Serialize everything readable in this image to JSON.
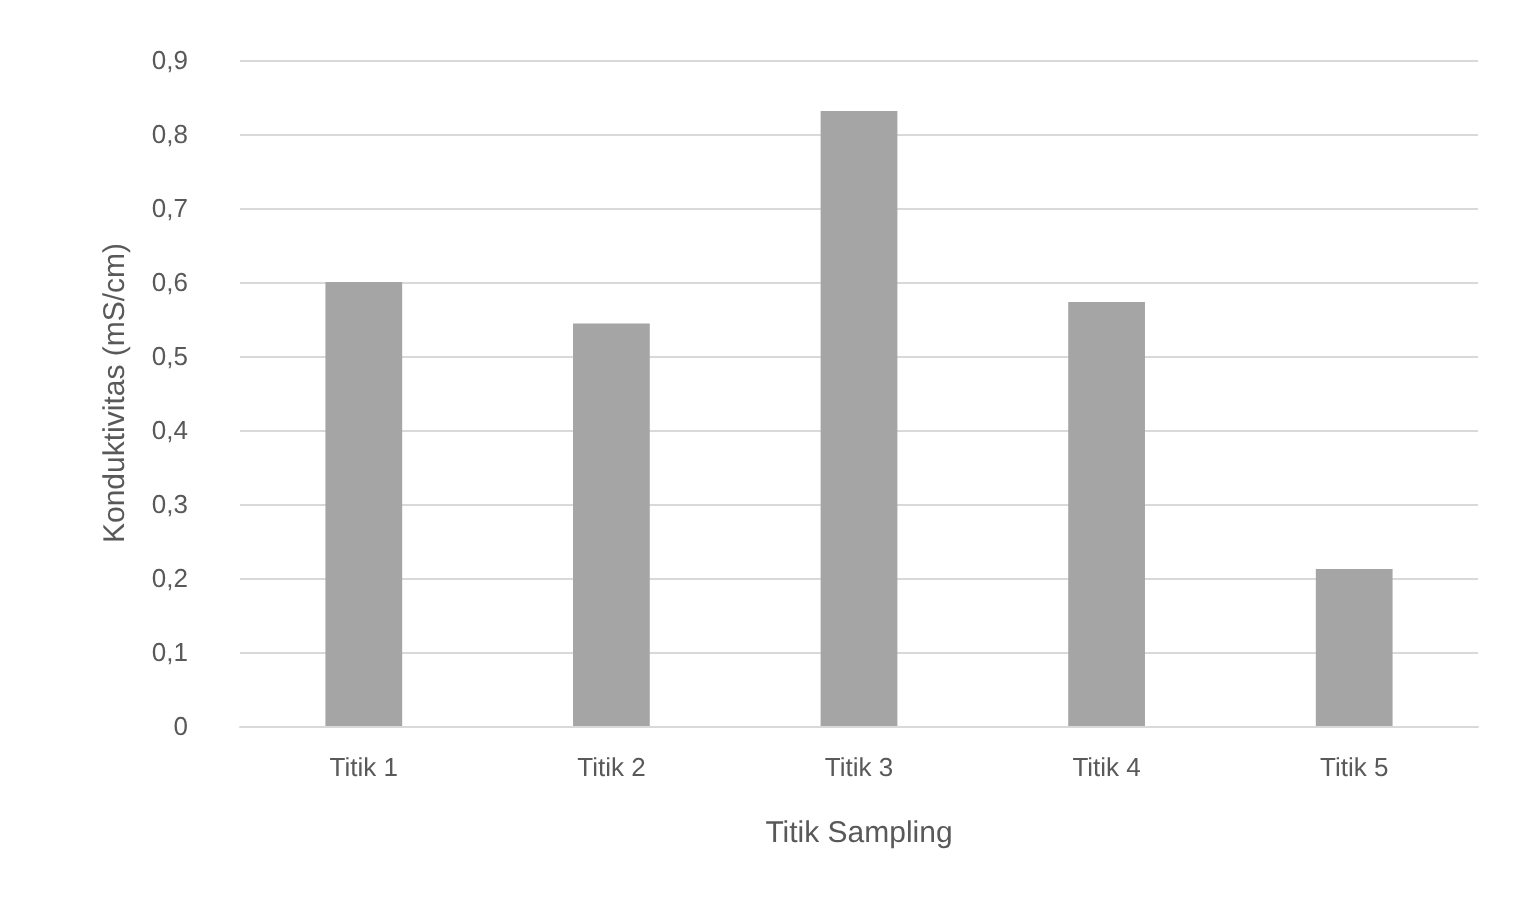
{
  "chart_data": {
    "type": "bar",
    "xlabel": "Titik Sampling",
    "ylabel": "Konduktivitas (mS/cm)",
    "categories": [
      "Titik 1",
      "Titik 2",
      "Titik 3",
      "Titik 4",
      "Titik 5"
    ],
    "values": [
      0.6,
      0.544,
      0.831,
      0.573,
      0.212
    ],
    "color": "#a5a5a5",
    "ylim": [
      0,
      0.9
    ],
    "yticks": [
      0,
      {
        "value": 0.1,
        "label": "0,1"
      },
      {
        "value": 0.2,
        "label": "0,2"
      },
      {
        "value": 0.3,
        "label": "0,3"
      },
      {
        "value": 0.4,
        "label": "0,4"
      },
      {
        "value": 0.5,
        "label": "0,5"
      },
      {
        "value": 0.6,
        "label": "0,6"
      },
      {
        "value": 0.7,
        "label": "0,7"
      },
      {
        "value": 0.8,
        "label": "0,8"
      },
      {
        "value": 0.9,
        "label": "0,9"
      }
    ],
    "grid": "y"
  }
}
